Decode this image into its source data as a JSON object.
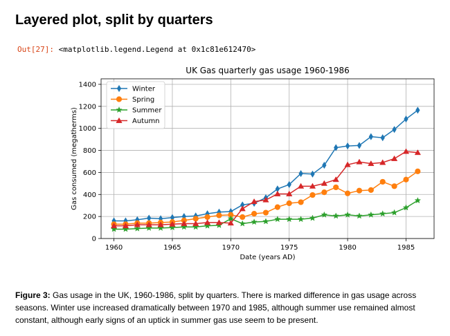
{
  "heading": "Layered plot, split by quarters",
  "output": {
    "prompt": "Out[27]:",
    "text": "<matplotlib.legend.Legend at 0x1c81e612470>"
  },
  "caption": {
    "label": "Figure 3:",
    "text": "Gas usage in the UK, 1960-1986, split by quarters. There is marked difference in gas usage across seasons. Winter use increased dramatically between 1970 and 1985, although summer use remained almost constant, although early signs of an uptick in summer gas use seem to be present."
  },
  "chart_data": {
    "type": "line",
    "title": "UK Gas quarterly gas usage 1960-1986",
    "xlabel": "Date (years AD)",
    "ylabel": "Gas consumed (megatherms)",
    "xlim": [
      1958.9,
      1987.4
    ],
    "ylim": [
      0,
      1450
    ],
    "xticks": [
      1960,
      1965,
      1970,
      1975,
      1980,
      1985
    ],
    "yticks": [
      0,
      200,
      400,
      600,
      800,
      1000,
      1200,
      1400
    ],
    "grid": true,
    "legend_position": "top-left",
    "x": [
      1960,
      1961,
      1962,
      1963,
      1964,
      1965,
      1966,
      1967,
      1968,
      1969,
      1970,
      1971,
      1972,
      1973,
      1974,
      1975,
      1976,
      1977,
      1978,
      1979,
      1980,
      1981,
      1982,
      1983,
      1984,
      1985,
      1986
    ],
    "series": [
      {
        "name": "Winter",
        "color": "#1f77b4",
        "marker": "thin-diamond",
        "values": [
          160,
          160,
          170,
          185,
          180,
          190,
          200,
          205,
          225,
          240,
          245,
          305,
          320,
          370,
          450,
          490,
          590,
          585,
          665,
          825,
          840,
          845,
          925,
          915,
          990,
          1085,
          1165
        ]
      },
      {
        "name": "Spring",
        "color": "#ff7f0e",
        "marker": "circle",
        "values": [
          130,
          130,
          140,
          140,
          145,
          150,
          165,
          180,
          195,
          210,
          215,
          195,
          225,
          235,
          285,
          320,
          330,
          395,
          420,
          465,
          410,
          435,
          440,
          515,
          475,
          535,
          610
        ]
      },
      {
        "name": "Summer",
        "color": "#2ca02c",
        "marker": "star",
        "values": [
          85,
          85,
          90,
          95,
          95,
          100,
          105,
          105,
          115,
          120,
          180,
          135,
          150,
          155,
          175,
          175,
          175,
          185,
          215,
          205,
          215,
          205,
          215,
          225,
          235,
          280,
          345
        ]
      },
      {
        "name": "Autumn",
        "color": "#d62728",
        "marker": "triangle",
        "values": [
          115,
          115,
          125,
          125,
          125,
          130,
          135,
          135,
          145,
          145,
          140,
          270,
          335,
          350,
          405,
          405,
          475,
          475,
          500,
          535,
          670,
          695,
          680,
          690,
          725,
          790,
          780
        ]
      }
    ]
  }
}
